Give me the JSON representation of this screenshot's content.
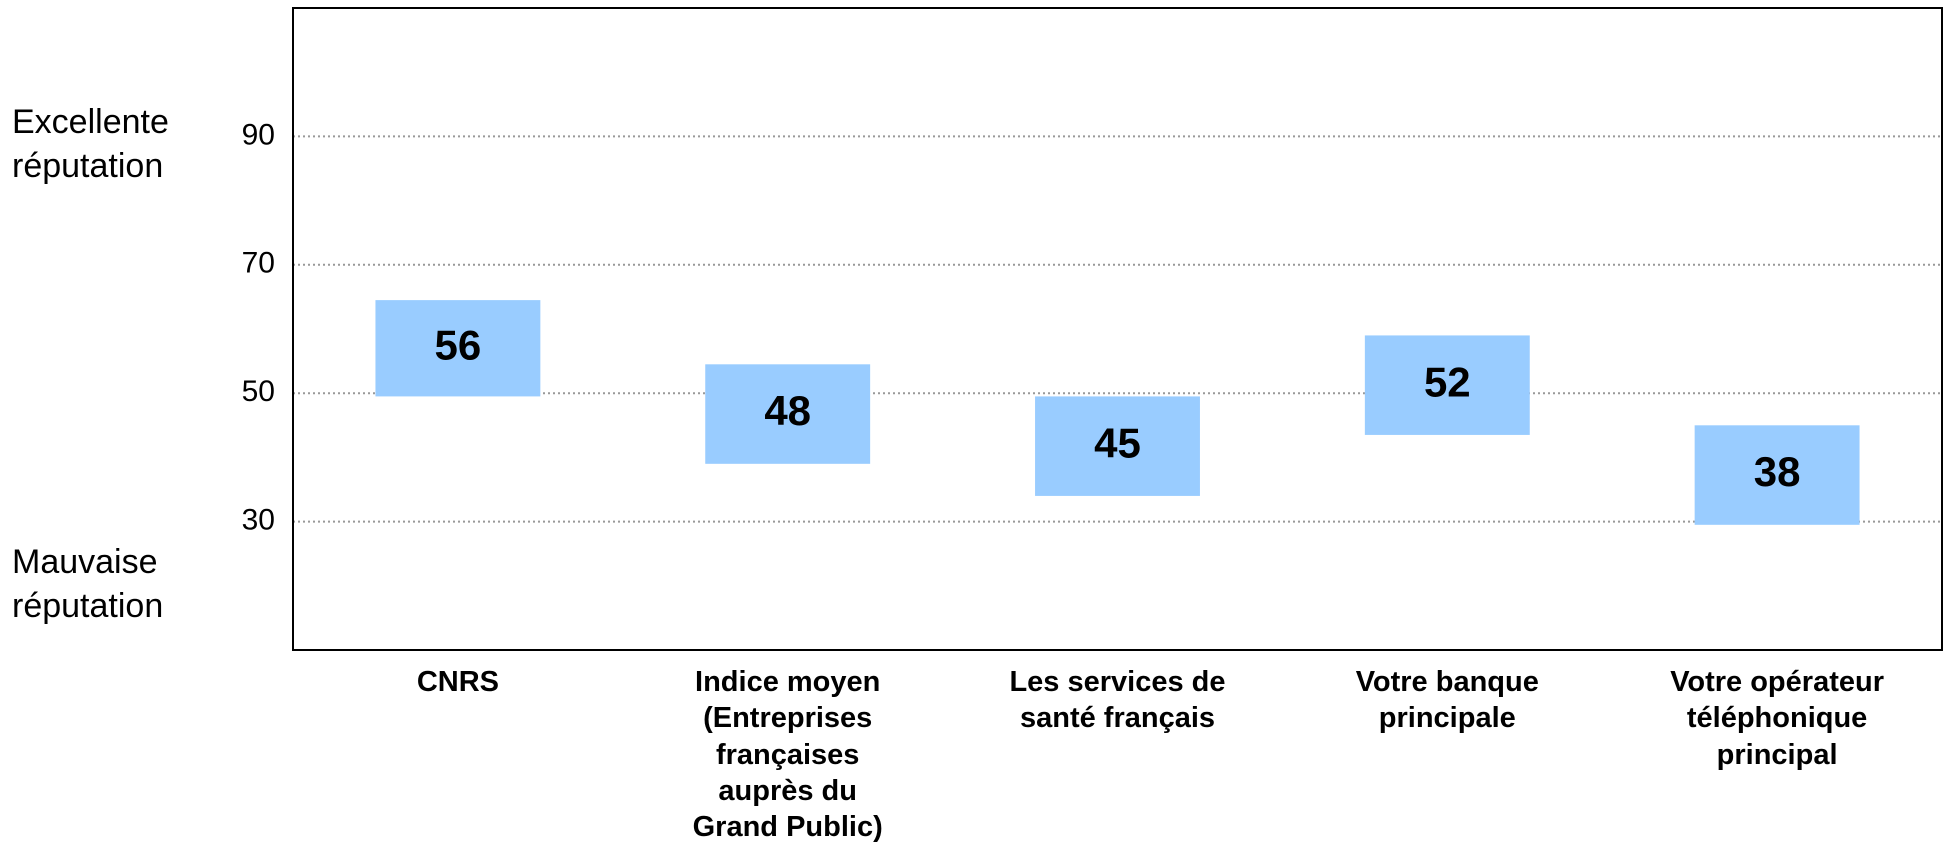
{
  "chart_data": {
    "type": "floating-bar",
    "categories": [
      "CNRS",
      "Indice moyen\n(Entreprises\nfrançaises\nauprès du\nGrand Public)",
      "Les services de\nsanté français",
      "Votre banque\nprincipale",
      "Votre opérateur\ntéléphonique\nprincipal"
    ],
    "values": [
      56,
      48,
      45,
      52,
      38
    ],
    "low": [
      49.5,
      39,
      34,
      43.5,
      29.5
    ],
    "high": [
      64.5,
      54.5,
      49.5,
      59,
      45
    ],
    "color": "#99ccff",
    "ylim": [
      10,
      110
    ],
    "yticks": [
      30,
      50,
      70,
      90
    ],
    "grid": true,
    "annotations": [
      "Excellente\nréputation",
      "Mauvaise\nréputation"
    ]
  }
}
